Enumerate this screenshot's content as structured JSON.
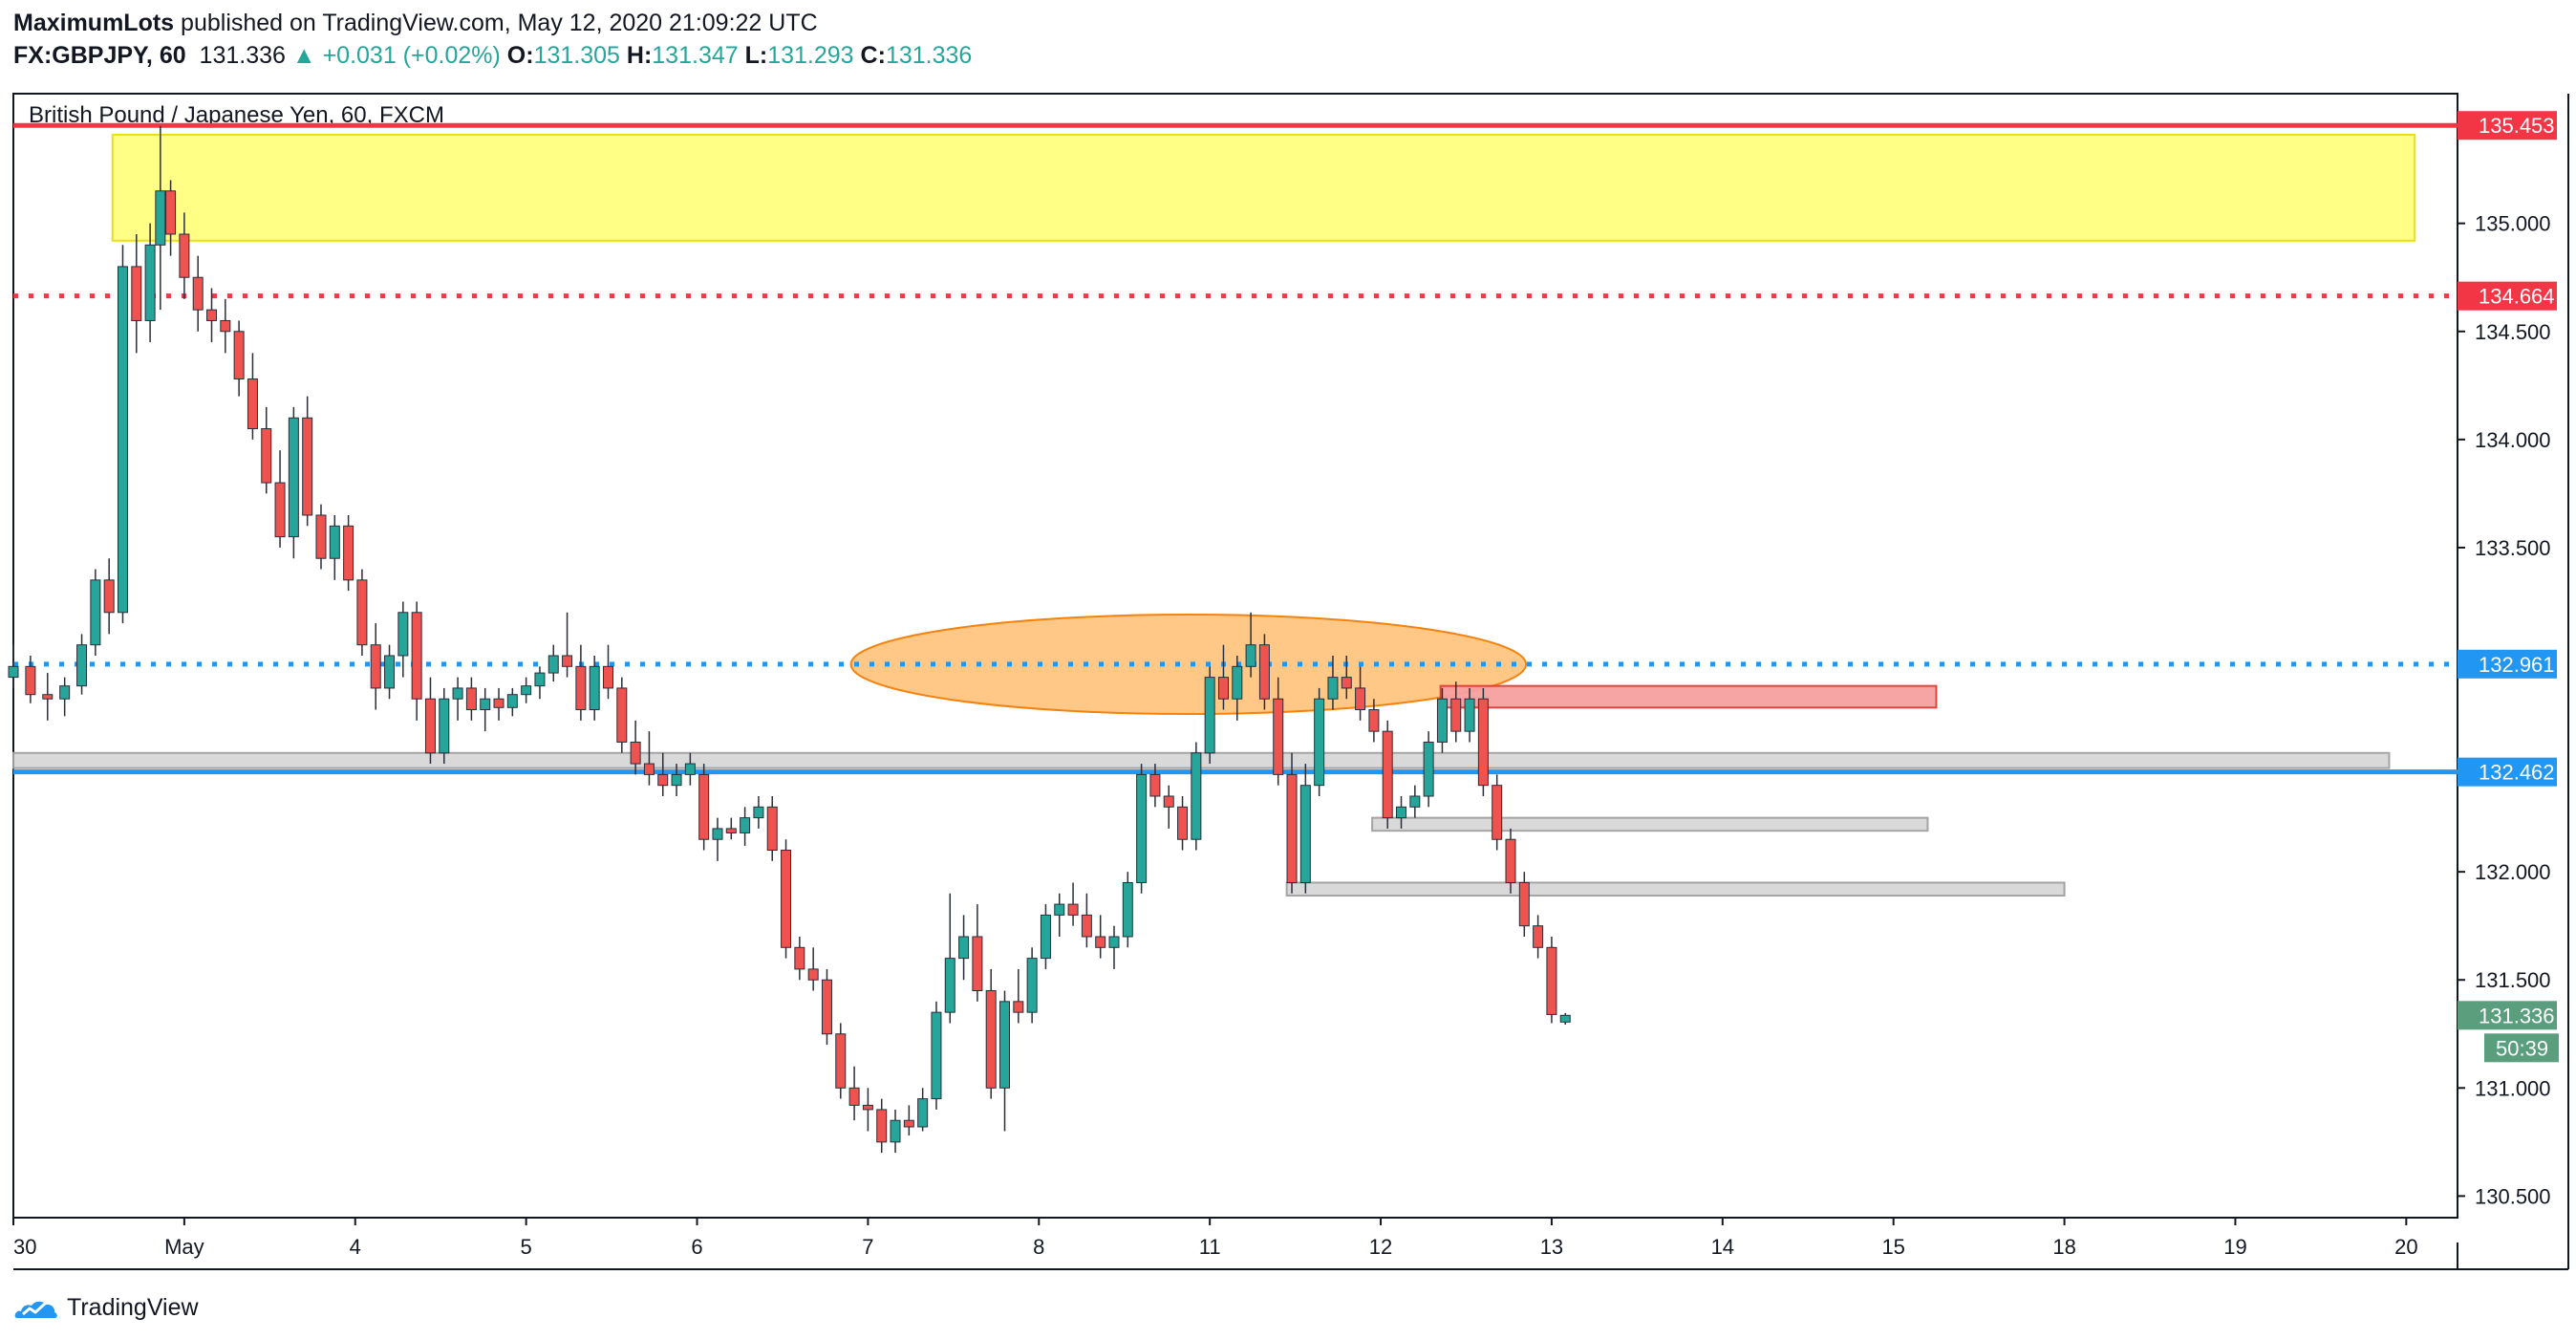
{
  "header": {
    "publisher": "MaximumLots",
    "published_on": "published on TradingView.com, May 12, 2020 21:09:22 UTC",
    "symbol": "FX:GBPJPY, 60",
    "last": "131.336",
    "change_arrow": "▲",
    "change": "+0.031 (+0.02%)",
    "open_label": "O:",
    "open": "131.305",
    "high_label": "H:",
    "high": "131.347",
    "low_label": "L:",
    "low": "131.293",
    "close_label": "C:",
    "close": "131.336"
  },
  "footer": {
    "brand": "TradingView",
    "logo_icon": "tradingview-logo-icon"
  },
  "colors": {
    "up": "#26a69a",
    "down": "#ef5350",
    "resistance": "#f23645",
    "support": "#2196f3",
    "zone_yellow": "#ffff80",
    "zone_orange": "#ffc680",
    "zone_red": "#f7a0a0",
    "zone_gray": "#d6d6d6"
  },
  "chart_data": {
    "type": "candlestick",
    "title": "British Pound / Japanese Yen, 60, FXCM",
    "ylim": [
      130.4,
      135.6
    ],
    "yticks": [
      130.5,
      131.0,
      131.5,
      132.0,
      132.5,
      133.0,
      133.5,
      134.0,
      134.5,
      135.0,
      135.5
    ],
    "ytick_labels": [
      "130.500",
      "131.000",
      "131.500",
      "132.000",
      "",
      "",
      "133.500",
      "134.000",
      "134.500",
      "135.000",
      ""
    ],
    "xlim": [
      0,
      14.3
    ],
    "xticks": [
      {
        "x": 0.0,
        "label": "30"
      },
      {
        "x": 1.0,
        "label": "May"
      },
      {
        "x": 2.0,
        "label": "4"
      },
      {
        "x": 3.0,
        "label": "5"
      },
      {
        "x": 4.0,
        "label": "6"
      },
      {
        "x": 5.0,
        "label": "7"
      },
      {
        "x": 6.0,
        "label": "8"
      },
      {
        "x": 7.0,
        "label": "11"
      },
      {
        "x": 8.0,
        "label": "12"
      },
      {
        "x": 9.0,
        "label": "13"
      },
      {
        "x": 10.0,
        "label": "14"
      },
      {
        "x": 11.0,
        "label": "15"
      },
      {
        "x": 12.0,
        "label": "18"
      },
      {
        "x": 13.0,
        "label": "19"
      },
      {
        "x": 14.0,
        "label": "20"
      }
    ],
    "levels": [
      {
        "price": 135.453,
        "label": "135.453",
        "style": "solid",
        "color": "#f23645"
      },
      {
        "price": 134.664,
        "label": "134.664",
        "style": "dotted",
        "color": "#f23645"
      },
      {
        "price": 132.961,
        "label": "132.961",
        "style": "dotted",
        "color": "#2196f3"
      },
      {
        "price": 132.462,
        "label": "132.462",
        "style": "solid",
        "color": "#2196f3"
      }
    ],
    "last_price": {
      "price": 131.336,
      "label": "131.336",
      "countdown": "50:39"
    },
    "zones": [
      {
        "x1": 0.58,
        "x2": 14.05,
        "y1": 134.92,
        "y2": 135.41,
        "shape": "rect",
        "color": "yellow"
      },
      {
        "x1": 4.9,
        "x2": 8.85,
        "y1": 132.73,
        "y2": 133.19,
        "shape": "ellipse",
        "color": "orange"
      },
      {
        "x1": 8.35,
        "x2": 11.25,
        "y1": 132.76,
        "y2": 132.86,
        "shape": "rect",
        "color": "red"
      },
      {
        "x1": 0.0,
        "x2": 13.9,
        "y1": 132.48,
        "y2": 132.55,
        "shape": "rect",
        "color": "gray"
      },
      {
        "x1": 7.95,
        "x2": 11.2,
        "y1": 132.19,
        "y2": 132.25,
        "shape": "rect",
        "color": "gray"
      },
      {
        "x1": 7.45,
        "x2": 12.0,
        "y1": 131.89,
        "y2": 131.95,
        "shape": "rect",
        "color": "gray"
      }
    ],
    "candles": [
      {
        "x": 0.0,
        "o": 132.9,
        "h": 133.05,
        "l": 132.85,
        "c": 132.95
      },
      {
        "x": 0.1,
        "o": 132.95,
        "h": 133.0,
        "l": 132.78,
        "c": 132.82
      },
      {
        "x": 0.2,
        "o": 132.82,
        "h": 132.92,
        "l": 132.7,
        "c": 132.8
      },
      {
        "x": 0.3,
        "o": 132.8,
        "h": 132.9,
        "l": 132.72,
        "c": 132.86
      },
      {
        "x": 0.4,
        "o": 132.86,
        "h": 133.1,
        "l": 132.82,
        "c": 133.05
      },
      {
        "x": 0.48,
        "o": 133.05,
        "h": 133.4,
        "l": 133.0,
        "c": 133.35
      },
      {
        "x": 0.56,
        "o": 133.35,
        "h": 133.45,
        "l": 133.1,
        "c": 133.2
      },
      {
        "x": 0.64,
        "o": 133.2,
        "h": 134.9,
        "l": 133.15,
        "c": 134.8
      },
      {
        "x": 0.72,
        "o": 134.8,
        "h": 134.95,
        "l": 134.4,
        "c": 134.55
      },
      {
        "x": 0.8,
        "o": 134.55,
        "h": 135.0,
        "l": 134.45,
        "c": 134.9
      },
      {
        "x": 0.86,
        "o": 134.9,
        "h": 135.45,
        "l": 134.6,
        "c": 135.15
      },
      {
        "x": 0.92,
        "o": 135.15,
        "h": 135.2,
        "l": 134.85,
        "c": 134.95
      },
      {
        "x": 1.0,
        "o": 134.95,
        "h": 135.05,
        "l": 134.65,
        "c": 134.75
      },
      {
        "x": 1.08,
        "o": 134.75,
        "h": 134.85,
        "l": 134.5,
        "c": 134.6
      },
      {
        "x": 1.16,
        "o": 134.6,
        "h": 134.7,
        "l": 134.45,
        "c": 134.55
      },
      {
        "x": 1.24,
        "o": 134.55,
        "h": 134.65,
        "l": 134.4,
        "c": 134.5
      },
      {
        "x": 1.32,
        "o": 134.5,
        "h": 134.55,
        "l": 134.2,
        "c": 134.28
      },
      {
        "x": 1.4,
        "o": 134.28,
        "h": 134.4,
        "l": 134.0,
        "c": 134.05
      },
      {
        "x": 1.48,
        "o": 134.05,
        "h": 134.15,
        "l": 133.75,
        "c": 133.8
      },
      {
        "x": 1.56,
        "o": 133.8,
        "h": 133.95,
        "l": 133.5,
        "c": 133.55
      },
      {
        "x": 1.64,
        "o": 133.55,
        "h": 134.15,
        "l": 133.45,
        "c": 134.1
      },
      {
        "x": 1.72,
        "o": 134.1,
        "h": 134.2,
        "l": 133.6,
        "c": 133.65
      },
      {
        "x": 1.8,
        "o": 133.65,
        "h": 133.7,
        "l": 133.4,
        "c": 133.45
      },
      {
        "x": 1.88,
        "o": 133.45,
        "h": 133.65,
        "l": 133.35,
        "c": 133.6
      },
      {
        "x": 1.96,
        "o": 133.6,
        "h": 133.65,
        "l": 133.3,
        "c": 133.35
      },
      {
        "x": 2.04,
        "o": 133.35,
        "h": 133.4,
        "l": 133.0,
        "c": 133.05
      },
      {
        "x": 2.12,
        "o": 133.05,
        "h": 133.15,
        "l": 132.75,
        "c": 132.85
      },
      {
        "x": 2.2,
        "o": 132.85,
        "h": 133.05,
        "l": 132.8,
        "c": 133.0
      },
      {
        "x": 2.28,
        "o": 133.0,
        "h": 133.25,
        "l": 132.9,
        "c": 133.2
      },
      {
        "x": 2.36,
        "o": 133.2,
        "h": 133.25,
        "l": 132.7,
        "c": 132.8
      },
      {
        "x": 2.44,
        "o": 132.8,
        "h": 132.9,
        "l": 132.5,
        "c": 132.55
      },
      {
        "x": 2.52,
        "o": 132.55,
        "h": 132.85,
        "l": 132.5,
        "c": 132.8
      },
      {
        "x": 2.6,
        "o": 132.8,
        "h": 132.9,
        "l": 132.7,
        "c": 132.85
      },
      {
        "x": 2.68,
        "o": 132.85,
        "h": 132.9,
        "l": 132.7,
        "c": 132.75
      },
      {
        "x": 2.76,
        "o": 132.75,
        "h": 132.85,
        "l": 132.65,
        "c": 132.8
      },
      {
        "x": 2.84,
        "o": 132.8,
        "h": 132.85,
        "l": 132.7,
        "c": 132.76
      },
      {
        "x": 2.92,
        "o": 132.76,
        "h": 132.85,
        "l": 132.72,
        "c": 132.82
      },
      {
        "x": 3.0,
        "o": 132.82,
        "h": 132.9,
        "l": 132.78,
        "c": 132.86
      },
      {
        "x": 3.08,
        "o": 132.86,
        "h": 132.95,
        "l": 132.8,
        "c": 132.92
      },
      {
        "x": 3.16,
        "o": 132.92,
        "h": 133.05,
        "l": 132.88,
        "c": 133.0
      },
      {
        "x": 3.24,
        "o": 133.0,
        "h": 133.2,
        "l": 132.9,
        "c": 132.95
      },
      {
        "x": 3.32,
        "o": 132.95,
        "h": 133.05,
        "l": 132.7,
        "c": 132.75
      },
      {
        "x": 3.4,
        "o": 132.75,
        "h": 133.0,
        "l": 132.7,
        "c": 132.95
      },
      {
        "x": 3.48,
        "o": 132.95,
        "h": 133.05,
        "l": 132.8,
        "c": 132.85
      },
      {
        "x": 3.56,
        "o": 132.85,
        "h": 132.9,
        "l": 132.55,
        "c": 132.6
      },
      {
        "x": 3.64,
        "o": 132.6,
        "h": 132.7,
        "l": 132.45,
        "c": 132.5
      },
      {
        "x": 3.72,
        "o": 132.5,
        "h": 132.65,
        "l": 132.4,
        "c": 132.45
      },
      {
        "x": 3.8,
        "o": 132.45,
        "h": 132.55,
        "l": 132.35,
        "c": 132.4
      },
      {
        "x": 3.88,
        "o": 132.4,
        "h": 132.5,
        "l": 132.35,
        "c": 132.45
      },
      {
        "x": 3.96,
        "o": 132.45,
        "h": 132.55,
        "l": 132.4,
        "c": 132.5
      },
      {
        "x": 4.04,
        "o": 132.45,
        "h": 132.5,
        "l": 132.1,
        "c": 132.15
      },
      {
        "x": 4.12,
        "o": 132.15,
        "h": 132.25,
        "l": 132.05,
        "c": 132.2
      },
      {
        "x": 4.2,
        "o": 132.2,
        "h": 132.25,
        "l": 132.15,
        "c": 132.18
      },
      {
        "x": 4.28,
        "o": 132.18,
        "h": 132.3,
        "l": 132.12,
        "c": 132.25
      },
      {
        "x": 4.36,
        "o": 132.25,
        "h": 132.35,
        "l": 132.2,
        "c": 132.3
      },
      {
        "x": 4.44,
        "o": 132.3,
        "h": 132.35,
        "l": 132.05,
        "c": 132.1
      },
      {
        "x": 4.52,
        "o": 132.1,
        "h": 132.15,
        "l": 131.6,
        "c": 131.65
      },
      {
        "x": 4.6,
        "o": 131.65,
        "h": 131.7,
        "l": 131.5,
        "c": 131.55
      },
      {
        "x": 4.68,
        "o": 131.55,
        "h": 131.65,
        "l": 131.45,
        "c": 131.5
      },
      {
        "x": 4.76,
        "o": 131.5,
        "h": 131.55,
        "l": 131.2,
        "c": 131.25
      },
      {
        "x": 4.84,
        "o": 131.25,
        "h": 131.3,
        "l": 130.95,
        "c": 131.0
      },
      {
        "x": 4.92,
        "o": 131.0,
        "h": 131.1,
        "l": 130.85,
        "c": 130.92
      },
      {
        "x": 5.0,
        "o": 130.92,
        "h": 131.0,
        "l": 130.8,
        "c": 130.9
      },
      {
        "x": 5.08,
        "o": 130.9,
        "h": 130.95,
        "l": 130.7,
        "c": 130.75
      },
      {
        "x": 5.16,
        "o": 130.75,
        "h": 130.9,
        "l": 130.7,
        "c": 130.85
      },
      {
        "x": 5.24,
        "o": 130.85,
        "h": 130.92,
        "l": 130.78,
        "c": 130.82
      },
      {
        "x": 5.32,
        "o": 130.82,
        "h": 131.0,
        "l": 130.8,
        "c": 130.95
      },
      {
        "x": 5.4,
        "o": 130.95,
        "h": 131.4,
        "l": 130.9,
        "c": 131.35
      },
      {
        "x": 5.48,
        "o": 131.35,
        "h": 131.9,
        "l": 131.3,
        "c": 131.6
      },
      {
        "x": 5.56,
        "o": 131.6,
        "h": 131.8,
        "l": 131.5,
        "c": 131.7
      },
      {
        "x": 5.64,
        "o": 131.7,
        "h": 131.85,
        "l": 131.4,
        "c": 131.45
      },
      {
        "x": 5.72,
        "o": 131.45,
        "h": 131.55,
        "l": 130.95,
        "c": 131.0
      },
      {
        "x": 5.8,
        "o": 131.0,
        "h": 131.45,
        "l": 130.8,
        "c": 131.4
      },
      {
        "x": 5.88,
        "o": 131.4,
        "h": 131.55,
        "l": 131.3,
        "c": 131.35
      },
      {
        "x": 5.96,
        "o": 131.35,
        "h": 131.65,
        "l": 131.3,
        "c": 131.6
      },
      {
        "x": 6.04,
        "o": 131.6,
        "h": 131.85,
        "l": 131.55,
        "c": 131.8
      },
      {
        "x": 6.12,
        "o": 131.8,
        "h": 131.9,
        "l": 131.7,
        "c": 131.85
      },
      {
        "x": 6.2,
        "o": 131.85,
        "h": 131.95,
        "l": 131.75,
        "c": 131.8
      },
      {
        "x": 6.28,
        "o": 131.8,
        "h": 131.9,
        "l": 131.65,
        "c": 131.7
      },
      {
        "x": 6.36,
        "o": 131.7,
        "h": 131.8,
        "l": 131.6,
        "c": 131.65
      },
      {
        "x": 6.44,
        "o": 131.65,
        "h": 131.75,
        "l": 131.55,
        "c": 131.7
      },
      {
        "x": 6.52,
        "o": 131.7,
        "h": 132.0,
        "l": 131.65,
        "c": 131.95
      },
      {
        "x": 6.6,
        "o": 131.95,
        "h": 132.5,
        "l": 131.9,
        "c": 132.45
      },
      {
        "x": 6.68,
        "o": 132.45,
        "h": 132.5,
        "l": 132.3,
        "c": 132.35
      },
      {
        "x": 6.76,
        "o": 132.35,
        "h": 132.4,
        "l": 132.2,
        "c": 132.3
      },
      {
        "x": 6.84,
        "o": 132.3,
        "h": 132.35,
        "l": 132.1,
        "c": 132.15
      },
      {
        "x": 6.92,
        "o": 132.15,
        "h": 132.6,
        "l": 132.1,
        "c": 132.55
      },
      {
        "x": 7.0,
        "o": 132.55,
        "h": 132.95,
        "l": 132.5,
        "c": 132.9
      },
      {
        "x": 7.08,
        "o": 132.9,
        "h": 133.05,
        "l": 132.75,
        "c": 132.8
      },
      {
        "x": 7.16,
        "o": 132.8,
        "h": 133.0,
        "l": 132.7,
        "c": 132.95
      },
      {
        "x": 7.24,
        "o": 132.95,
        "h": 133.2,
        "l": 132.9,
        "c": 133.05
      },
      {
        "x": 7.32,
        "o": 133.05,
        "h": 133.1,
        "l": 132.75,
        "c": 132.8
      },
      {
        "x": 7.4,
        "o": 132.8,
        "h": 132.9,
        "l": 132.4,
        "c": 132.45
      },
      {
        "x": 7.48,
        "o": 132.45,
        "h": 132.55,
        "l": 131.9,
        "c": 131.95
      },
      {
        "x": 7.56,
        "o": 131.95,
        "h": 132.5,
        "l": 131.9,
        "c": 132.4
      },
      {
        "x": 7.64,
        "o": 132.4,
        "h": 132.85,
        "l": 132.35,
        "c": 132.8
      },
      {
        "x": 7.72,
        "o": 132.8,
        "h": 133.0,
        "l": 132.75,
        "c": 132.9
      },
      {
        "x": 7.8,
        "o": 132.9,
        "h": 133.0,
        "l": 132.8,
        "c": 132.85
      },
      {
        "x": 7.88,
        "o": 132.85,
        "h": 132.95,
        "l": 132.7,
        "c": 132.75
      },
      {
        "x": 7.96,
        "o": 132.75,
        "h": 132.8,
        "l": 132.6,
        "c": 132.65
      },
      {
        "x": 8.04,
        "o": 132.65,
        "h": 132.7,
        "l": 132.2,
        "c": 132.25
      },
      {
        "x": 8.12,
        "o": 132.25,
        "h": 132.35,
        "l": 132.2,
        "c": 132.3
      },
      {
        "x": 8.2,
        "o": 132.3,
        "h": 132.4,
        "l": 132.25,
        "c": 132.35
      },
      {
        "x": 8.28,
        "o": 132.35,
        "h": 132.65,
        "l": 132.3,
        "c": 132.6
      },
      {
        "x": 8.36,
        "o": 132.6,
        "h": 132.85,
        "l": 132.55,
        "c": 132.8
      },
      {
        "x": 8.44,
        "o": 132.8,
        "h": 132.88,
        "l": 132.6,
        "c": 132.65
      },
      {
        "x": 8.52,
        "o": 132.65,
        "h": 132.85,
        "l": 132.6,
        "c": 132.8
      },
      {
        "x": 8.6,
        "o": 132.8,
        "h": 132.85,
        "l": 132.35,
        "c": 132.4
      },
      {
        "x": 8.68,
        "o": 132.4,
        "h": 132.45,
        "l": 132.1,
        "c": 132.15
      },
      {
        "x": 8.76,
        "o": 132.15,
        "h": 132.2,
        "l": 131.9,
        "c": 131.95
      },
      {
        "x": 8.84,
        "o": 131.95,
        "h": 132.0,
        "l": 131.7,
        "c": 131.75
      },
      {
        "x": 8.92,
        "o": 131.75,
        "h": 131.8,
        "l": 131.6,
        "c": 131.65
      },
      {
        "x": 9.0,
        "o": 131.65,
        "h": 131.7,
        "l": 131.3,
        "c": 131.34
      },
      {
        "x": 9.08,
        "o": 131.305,
        "h": 131.347,
        "l": 131.293,
        "c": 131.336
      }
    ]
  }
}
